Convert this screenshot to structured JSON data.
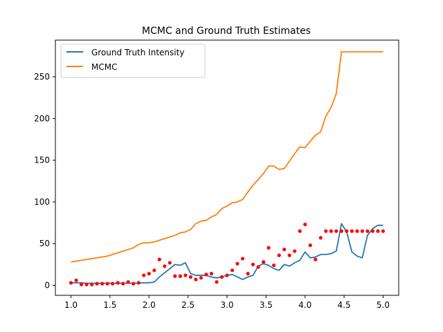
{
  "chart_data": {
    "type": "line",
    "title": "MCMC and Ground Truth Estimates",
    "xlabel": "",
    "ylabel": "",
    "xlim": [
      0.8,
      5.2
    ],
    "ylim": [
      -12,
      294
    ],
    "xticks": [
      1.0,
      1.5,
      2.0,
      2.5,
      3.0,
      3.5,
      4.0,
      4.5,
      5.0
    ],
    "xtick_labels": [
      "1.0",
      "1.5",
      "2.0",
      "2.5",
      "3.0",
      "3.5",
      "4.0",
      "4.5",
      "5.0"
    ],
    "yticks": [
      0,
      50,
      100,
      150,
      200,
      250
    ],
    "ytick_labels": [
      "0",
      "50",
      "100",
      "150",
      "200",
      "250"
    ],
    "grid": false,
    "legend_position": "top-left",
    "x": [
      1.0,
      1.067,
      1.133,
      1.2,
      1.267,
      1.333,
      1.4,
      1.467,
      1.533,
      1.6,
      1.667,
      1.733,
      1.8,
      1.867,
      1.933,
      2.0,
      2.067,
      2.133,
      2.2,
      2.267,
      2.333,
      2.4,
      2.467,
      2.533,
      2.6,
      2.667,
      2.733,
      2.8,
      2.867,
      2.933,
      3.0,
      3.067,
      3.133,
      3.2,
      3.267,
      3.333,
      3.4,
      3.467,
      3.533,
      3.6,
      3.667,
      3.733,
      3.8,
      3.867,
      3.933,
      4.0,
      4.067,
      4.133,
      4.2,
      4.267,
      4.333,
      4.4,
      4.467,
      4.533,
      4.6,
      4.667,
      4.733,
      4.8,
      4.867,
      4.933,
      5.0
    ],
    "series": [
      {
        "name": "Ground Truth Intensity",
        "color": "#1f77b4",
        "style": "line",
        "values": [
          3,
          3,
          3,
          2.5,
          2.5,
          2.5,
          2.5,
          2.5,
          2.5,
          2.5,
          2.5,
          2.5,
          2.5,
          2.5,
          3,
          3,
          4,
          10,
          15,
          20,
          25,
          24,
          27,
          14,
          12,
          12,
          12,
          10,
          9,
          10,
          12,
          13,
          10,
          7,
          10,
          12,
          23,
          26,
          24,
          20,
          18,
          25,
          23,
          27,
          30,
          40,
          33,
          34,
          37,
          37,
          38,
          41,
          74,
          64,
          40,
          35,
          33,
          60,
          68,
          72,
          72
        ]
      },
      {
        "name": "MCMC",
        "color": "#ff7f0e",
        "style": "line",
        "values": [
          28,
          29,
          30,
          31,
          32,
          33,
          34,
          35,
          37,
          39,
          41,
          43,
          45,
          49,
          51,
          51,
          52,
          54,
          56,
          58,
          60,
          63,
          64,
          67,
          74,
          77,
          78,
          82,
          85,
          92,
          95,
          99,
          100,
          103,
          112,
          120,
          127,
          134,
          143,
          143,
          139,
          140,
          149,
          158,
          166,
          165,
          173,
          180,
          184,
          203,
          213,
          230,
          280,
          280,
          280,
          280,
          280,
          280,
          280,
          280,
          280
        ]
      },
      {
        "name": "",
        "color": "#ff0000",
        "style": "points",
        "values": [
          3,
          6,
          1,
          1,
          1,
          2,
          2,
          2,
          2,
          3,
          2,
          4,
          2,
          3,
          12,
          14,
          18,
          31,
          23,
          27,
          11,
          11,
          12,
          10,
          7,
          9,
          13,
          14,
          4,
          10,
          12,
          18,
          26,
          32,
          14,
          25,
          22,
          28,
          45,
          24,
          36,
          43,
          36,
          41,
          65,
          73,
          48,
          31,
          57,
          65,
          65,
          65,
          65,
          65,
          65,
          65,
          65,
          65,
          65,
          65,
          65
        ]
      }
    ]
  }
}
